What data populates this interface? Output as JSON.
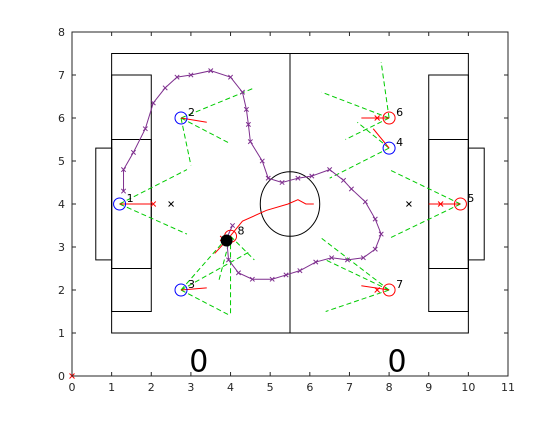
{
  "chart_data": {
    "type": "scatter",
    "title": "",
    "xlabel": "",
    "ylabel": "",
    "xlim": [
      0,
      11
    ],
    "ylim": [
      0,
      8
    ],
    "xticks": [
      "0",
      "1",
      "2",
      "3",
      "4",
      "5",
      "6",
      "7",
      "8",
      "9",
      "10",
      "11"
    ],
    "yticks": [
      "0",
      "1",
      "2",
      "3",
      "4",
      "5",
      "6",
      "7",
      "8"
    ],
    "grid": false,
    "legend": "none",
    "colors": {
      "axis": "#262626",
      "field_lines": "#000000",
      "blue_team": "#0000ff",
      "red_team": "#ff0000",
      "heading": "#ff0000",
      "vision": "#00cc00",
      "trajectory": "#7e2f8e",
      "ball": "#000000",
      "ball_trail": "#ff0000"
    },
    "score": {
      "left": "0",
      "right": "0"
    },
    "field": {
      "outer": [
        1,
        1,
        10,
        7.5
      ],
      "center_x": 5.5,
      "center_circle": {
        "x": 5.5,
        "y": 4,
        "r": 0.75
      },
      "penalty_areas": [
        [
          1,
          1.5,
          2,
          7
        ],
        [
          9,
          1.5,
          10,
          7
        ]
      ],
      "goal_areas": [
        [
          1,
          2.5,
          2,
          5.5
        ],
        [
          9,
          2.5,
          10,
          5.5
        ]
      ],
      "goals": [
        [
          0.6,
          2.7,
          1,
          5.3
        ],
        [
          10,
          2.7,
          10.4,
          5.3
        ]
      ],
      "penalty_spots": [
        [
          2.5,
          4
        ],
        [
          8.5,
          4
        ]
      ]
    },
    "players": [
      {
        "label": "1",
        "team": "blue",
        "x": 1.2,
        "y": 4.0,
        "heading": [
          2.0,
          4.0
        ],
        "marker": [
          2.05,
          4.0
        ],
        "vision": [
          [
            [
              1.2,
              4.0
            ],
            [
              2.9,
              4.8
            ]
          ],
          [
            [
              1.2,
              4.0
            ],
            [
              2.9,
              3.3
            ]
          ]
        ]
      },
      {
        "label": "2",
        "team": "blue",
        "x": 2.75,
        "y": 6.0,
        "heading": [
          3.4,
          5.9
        ],
        "marker": null,
        "vision": [
          [
            [
              2.75,
              6.0
            ],
            [
              4.6,
              6.7
            ]
          ],
          [
            [
              2.75,
              6.0
            ],
            [
              4.0,
              5.4
            ]
          ],
          [
            [
              2.75,
              6.0
            ],
            [
              3.0,
              4.9
            ]
          ]
        ]
      },
      {
        "label": "3",
        "team": "blue",
        "x": 2.75,
        "y": 2.0,
        "heading": [
          3.4,
          2.05
        ],
        "marker": null,
        "vision": [
          [
            [
              2.75,
              2.0
            ],
            [
              4.5,
              2.9
            ]
          ],
          [
            [
              2.75,
              2.0
            ],
            [
              4.0,
              1.4
            ]
          ],
          [
            [
              2.75,
              2.0
            ],
            [
              3.8,
              3.1
            ]
          ]
        ]
      },
      {
        "label": "4",
        "team": "blue",
        "x": 8.0,
        "y": 5.3,
        "heading": [
          7.6,
          5.75
        ],
        "marker": null,
        "vision": [
          [
            [
              8.0,
              5.3
            ],
            [
              6.5,
              4.6
            ]
          ],
          [
            [
              8.0,
              5.3
            ],
            [
              7.2,
              5.9
            ]
          ]
        ]
      },
      {
        "label": "5",
        "team": "red",
        "x": 9.8,
        "y": 4.0,
        "heading": [
          9.0,
          4.0
        ],
        "marker": [
          9.3,
          4.0
        ],
        "vision": [
          [
            [
              9.8,
              4.0
            ],
            [
              8.0,
              4.8
            ]
          ],
          [
            [
              9.8,
              4.0
            ],
            [
              8.0,
              3.2
            ]
          ]
        ]
      },
      {
        "label": "6",
        "team": "red",
        "x": 8.0,
        "y": 6.0,
        "heading": [
          7.3,
          6.0
        ],
        "marker": [
          7.7,
          6.0
        ],
        "vision": [
          [
            [
              8.0,
              6.0
            ],
            [
              6.3,
              6.6
            ]
          ],
          [
            [
              8.0,
              6.0
            ],
            [
              6.9,
              5.5
            ]
          ],
          [
            [
              8.0,
              6.0
            ],
            [
              7.8,
              7.3
            ]
          ]
        ]
      },
      {
        "label": "7",
        "team": "red",
        "x": 8.0,
        "y": 2.0,
        "heading": [
          7.3,
          2.1
        ],
        "marker": [
          7.7,
          2.0
        ],
        "vision": [
          [
            [
              8.0,
              2.0
            ],
            [
              6.4,
              2.7
            ]
          ],
          [
            [
              8.0,
              2.0
            ],
            [
              6.4,
              1.5
            ]
          ],
          [
            [
              8.0,
              2.0
            ],
            [
              6.3,
              3.2
            ]
          ]
        ]
      },
      {
        "label": "8",
        "team": "red",
        "x": 4.0,
        "y": 3.25,
        "heading": [
          3.6,
          2.85
        ],
        "marker": [
          3.8,
          3.2
        ],
        "vision": [
          [
            [
              4.0,
              3.25
            ],
            [
              4.6,
              2.7
            ]
          ],
          [
            [
              4.0,
              3.25
            ],
            [
              4.0,
              1.4
            ]
          ],
          [
            [
              4.0,
              3.25
            ],
            [
              3.7,
              2.2
            ]
          ]
        ]
      }
    ],
    "ball": {
      "x": 3.9,
      "y": 3.15
    },
    "ball_trail": [
      [
        3.9,
        3.15
      ],
      [
        4.3,
        3.6
      ],
      [
        4.9,
        3.85
      ],
      [
        5.45,
        4.0
      ],
      [
        5.7,
        4.1
      ],
      [
        5.9,
        4.0
      ],
      [
        6.1,
        4.0
      ]
    ],
    "trajectory": [
      [
        1.3,
        4.3
      ],
      [
        1.3,
        4.8
      ],
      [
        1.55,
        5.2
      ],
      [
        1.85,
        5.75
      ],
      [
        2.05,
        6.35
      ],
      [
        2.35,
        6.7
      ],
      [
        2.65,
        6.95
      ],
      [
        3.0,
        7.0
      ],
      [
        3.5,
        7.1
      ],
      [
        4.0,
        6.95
      ],
      [
        4.3,
        6.6
      ],
      [
        4.4,
        6.2
      ],
      [
        4.45,
        5.85
      ],
      [
        4.5,
        5.45
      ],
      [
        4.8,
        5.0
      ],
      [
        4.95,
        4.6
      ],
      [
        5.3,
        4.5
      ],
      [
        5.7,
        4.6
      ],
      [
        6.05,
        4.65
      ],
      [
        6.5,
        4.8
      ],
      [
        6.85,
        4.55
      ],
      [
        7.05,
        4.35
      ],
      [
        7.4,
        4.05
      ],
      [
        7.65,
        3.65
      ],
      [
        7.8,
        3.3
      ],
      [
        7.65,
        2.95
      ],
      [
        7.35,
        2.75
      ],
      [
        6.95,
        2.7
      ],
      [
        6.55,
        2.75
      ],
      [
        6.15,
        2.65
      ],
      [
        5.75,
        2.45
      ],
      [
        5.4,
        2.35
      ],
      [
        5.05,
        2.25
      ],
      [
        4.55,
        2.25
      ],
      [
        4.2,
        2.4
      ],
      [
        3.95,
        2.7
      ],
      [
        3.9,
        3.2
      ],
      [
        4.05,
        3.5
      ]
    ]
  }
}
